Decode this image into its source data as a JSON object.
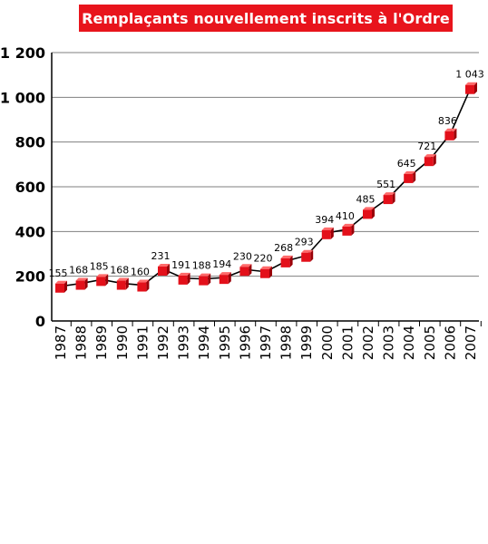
{
  "chart_data": {
    "type": "line",
    "title": "Remplaçants nouvellement inscrits à l'Ordre",
    "xlabel": "",
    "ylabel": "",
    "x": [
      "1987",
      "1988",
      "1989",
      "1990",
      "1991",
      "1992",
      "1993",
      "1994",
      "1995",
      "1996",
      "1997",
      "1998",
      "1999",
      "2000",
      "2001",
      "2002",
      "2003",
      "2004",
      "2005",
      "2006",
      "2007"
    ],
    "series": [
      {
        "values": [
          155,
          168,
          185,
          168,
          160,
          231,
          191,
          188,
          194,
          230,
          220,
          268,
          293,
          394,
          410,
          485,
          551,
          645,
          721,
          836,
          1043
        ]
      }
    ],
    "data_labels": [
      "155",
      "168",
      "185",
      "168",
      "160",
      "231",
      "191",
      "188",
      "194",
      "230",
      "220",
      "268",
      "293",
      "394",
      "410",
      "485",
      "551",
      "645",
      "721",
      "836",
      "1 043"
    ],
    "ylim": [
      0,
      1200
    ],
    "yticks": [
      0,
      200,
      400,
      600,
      800,
      1000,
      1200
    ],
    "ytick_labels": [
      "0",
      "200",
      "400",
      "600",
      "800",
      "1 000",
      "1 200"
    ],
    "grid": true,
    "colors": {
      "title_bg": "#e8141c",
      "title_text": "#ffffff",
      "marker": "#e3101a",
      "line": "#000000",
      "grid": "#7f7f7f"
    }
  }
}
